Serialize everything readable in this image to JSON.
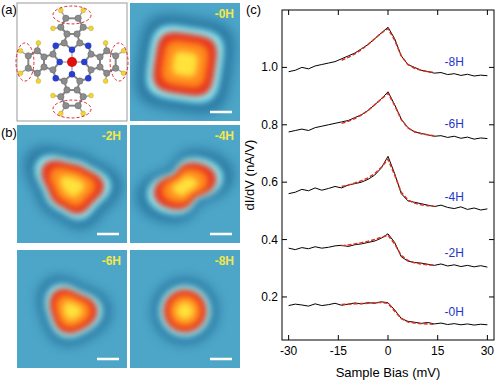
{
  "figure": {
    "panel_labels": [
      "(a)",
      "(b)",
      "(c)"
    ],
    "images": [
      "-0H",
      "-2H",
      "-4H",
      "-6H",
      "-8H"
    ]
  },
  "chart_data": {
    "type": "line",
    "x_label": "Sample Bias (mV)",
    "y_label": "dI/dV (nA/V)",
    "x": [
      -30,
      -28,
      -26,
      -24,
      -22,
      -20,
      -18,
      -16,
      -14,
      -12,
      -10,
      -8,
      -6,
      -4,
      -2,
      0,
      2,
      4,
      6,
      8,
      10,
      12,
      14,
      16,
      18,
      20,
      22,
      24,
      26,
      28,
      30
    ],
    "xlim": [
      -32,
      32
    ],
    "xticks": [
      -30,
      -15,
      0,
      15,
      30
    ],
    "ylim": [
      0.05,
      1.2
    ],
    "yticks": [
      0.2,
      0.4,
      0.6,
      0.8,
      {
        "value": 1,
        "label": "1.0"
      }
    ],
    "series": [
      {
        "name": "-0H",
        "color": "#000000",
        "line_style": "solid",
        "values": [
          0.17,
          0.175,
          0.172,
          0.168,
          0.176,
          0.17,
          0.173,
          0.178,
          0.171,
          0.175,
          0.179,
          0.176,
          0.18,
          0.178,
          0.183,
          0.18,
          0.155,
          0.125,
          0.115,
          0.112,
          0.108,
          0.111,
          0.106,
          0.109,
          0.104,
          0.107,
          0.103,
          0.106,
          0.102,
          0.105,
          0.103
        ]
      },
      {
        "color": "#e0301e",
        "line_style": "dashed",
        "values": [
          null,
          null,
          null,
          null,
          null,
          null,
          null,
          null,
          0.174,
          0.175,
          0.176,
          0.177,
          0.178,
          0.18,
          0.181,
          0.178,
          0.15,
          0.125,
          0.113,
          0.109,
          0.107,
          0.106,
          0.105,
          null,
          null,
          null,
          null,
          null,
          null,
          null,
          null
        ]
      },
      {
        "name": "-2H",
        "color": "#000000",
        "line_style": "solid",
        "values": [
          0.37,
          0.365,
          0.372,
          0.368,
          0.375,
          0.37,
          0.373,
          0.378,
          0.38,
          0.376,
          0.382,
          0.385,
          0.39,
          0.395,
          0.405,
          0.42,
          0.39,
          0.34,
          0.325,
          0.32,
          0.318,
          0.314,
          0.31,
          0.315,
          0.308,
          0.312,
          0.306,
          0.31,
          0.305,
          0.309,
          0.304
        ]
      },
      {
        "color": "#e0301e",
        "line_style": "dashed",
        "values": [
          null,
          null,
          null,
          null,
          null,
          null,
          null,
          null,
          0.378,
          0.381,
          0.385,
          0.389,
          0.394,
          0.4,
          0.408,
          0.415,
          0.385,
          0.345,
          0.327,
          0.319,
          0.315,
          0.312,
          0.311,
          null,
          null,
          null,
          null,
          null,
          null,
          null,
          null
        ]
      },
      {
        "name": "-4H",
        "color": "#000000",
        "line_style": "solid",
        "values": [
          0.56,
          0.565,
          0.575,
          0.57,
          0.58,
          0.572,
          0.578,
          0.585,
          0.58,
          0.59,
          0.595,
          0.6,
          0.61,
          0.625,
          0.65,
          0.69,
          0.63,
          0.56,
          0.535,
          0.53,
          0.525,
          0.52,
          0.515,
          0.52,
          0.512,
          0.508,
          0.514,
          0.505,
          0.51,
          0.503,
          0.507
        ]
      },
      {
        "color": "#e0301e",
        "line_style": "dashed",
        "values": [
          null,
          null,
          null,
          null,
          null,
          null,
          null,
          null,
          0.585,
          0.59,
          0.597,
          0.605,
          0.615,
          0.63,
          0.652,
          0.68,
          0.625,
          0.565,
          0.538,
          0.527,
          0.521,
          0.518,
          0.516,
          null,
          null,
          null,
          null,
          null,
          null,
          null,
          null
        ]
      },
      {
        "name": "-6H",
        "color": "#000000",
        "line_style": "solid",
        "values": [
          0.775,
          0.78,
          0.785,
          0.78,
          0.79,
          0.795,
          0.8,
          0.805,
          0.81,
          0.815,
          0.825,
          0.835,
          0.85,
          0.87,
          0.89,
          0.915,
          0.87,
          0.82,
          0.79,
          0.775,
          0.77,
          0.765,
          0.76,
          0.762,
          0.756,
          0.76,
          0.753,
          0.757,
          0.75,
          0.754,
          0.752
        ]
      },
      {
        "color": "#e0301e",
        "line_style": "dashed",
        "values": [
          null,
          null,
          null,
          null,
          null,
          null,
          null,
          null,
          0.805,
          0.812,
          0.822,
          0.834,
          0.85,
          0.87,
          0.89,
          0.91,
          0.868,
          0.818,
          0.789,
          0.776,
          0.769,
          0.765,
          0.762,
          null,
          null,
          null,
          null,
          null,
          null,
          null,
          null
        ]
      },
      {
        "name": "-8H",
        "color": "#000000",
        "line_style": "solid",
        "values": [
          0.985,
          0.99,
          1.0,
          0.995,
          1.005,
          1.01,
          1.015,
          1.02,
          1.03,
          1.04,
          1.05,
          1.065,
          1.08,
          1.1,
          1.12,
          1.14,
          1.1,
          1.04,
          1.01,
          1.0,
          0.99,
          0.985,
          0.98,
          0.982,
          0.975,
          0.978,
          0.972,
          0.976,
          0.97,
          0.973,
          0.971
        ]
      },
      {
        "color": "#e0301e",
        "line_style": "dashed",
        "values": [
          null,
          null,
          null,
          null,
          null,
          null,
          null,
          null,
          1.025,
          1.035,
          1.047,
          1.062,
          1.08,
          1.1,
          1.12,
          1.135,
          1.095,
          1.04,
          1.01,
          0.997,
          0.99,
          0.985,
          0.982,
          null,
          null,
          null,
          null,
          null,
          null,
          null,
          null
        ]
      }
    ]
  }
}
